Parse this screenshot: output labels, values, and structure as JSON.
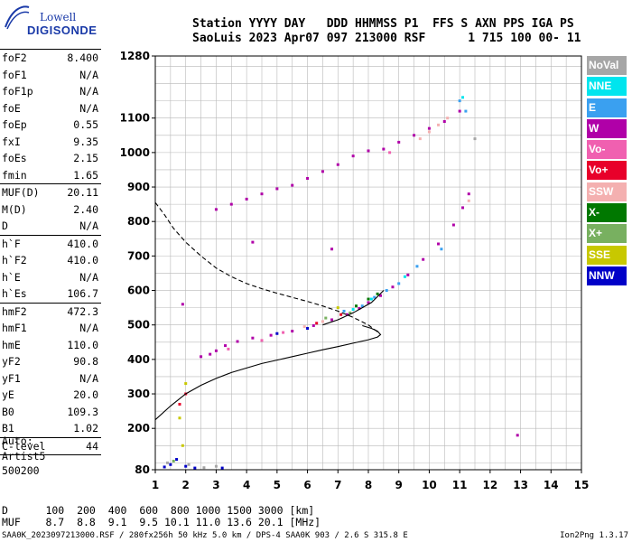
{
  "logo": {
    "line1": "Lowell",
    "line2": "DIGISONDE"
  },
  "header": {
    "line1": "Station YYYY DAY   DDD HHMMSS P1  FFS S AXN PPS IGA PS",
    "line2": "SaoLuis 2023 Apr07 097 213000 RSF      1 715 100 00- 11"
  },
  "params": {
    "group1": [
      {
        "label": "foF2",
        "value": "8.400"
      },
      {
        "label": "foF1",
        "value": "N/A"
      },
      {
        "label": "foF1p",
        "value": "N/A"
      },
      {
        "label": "foE",
        "value": "N/A"
      },
      {
        "label": "foEp",
        "value": "0.55"
      },
      {
        "label": "fxI",
        "value": "9.35"
      },
      {
        "label": "foEs",
        "value": "2.15"
      },
      {
        "label": "fmin",
        "value": "1.65"
      }
    ],
    "group2": [
      {
        "label": "MUF(D)",
        "value": "20.11"
      },
      {
        "label": "M(D)",
        "value": "2.40"
      },
      {
        "label": "D",
        "value": "N/A"
      }
    ],
    "group3": [
      {
        "label": "h`F",
        "value": "410.0"
      },
      {
        "label": "h`F2",
        "value": "410.0"
      },
      {
        "label": "h`E",
        "value": "N/A"
      },
      {
        "label": "h`Es",
        "value": "106.7"
      }
    ],
    "group4": [
      {
        "label": "hmF2",
        "value": "472.3"
      },
      {
        "label": "hmF1",
        "value": "N/A"
      },
      {
        "label": "hmE",
        "value": "110.0"
      },
      {
        "label": "yF2",
        "value": "90.8"
      },
      {
        "label": "yF1",
        "value": "N/A"
      },
      {
        "label": "yE",
        "value": "20.0"
      },
      {
        "label": "B0",
        "value": "109.3"
      },
      {
        "label": "B1",
        "value": "1.02"
      }
    ],
    "group5": [
      {
        "label": "C-level",
        "value": "44"
      }
    ]
  },
  "auto": {
    "line1": "Auto:",
    "line2": "Artist5",
    "line3": "500200"
  },
  "legend": [
    {
      "label": "NoVal",
      "color": "#a6a6a6"
    },
    {
      "label": "NNE",
      "color": "#00e5ee"
    },
    {
      "label": "E",
      "color": "#3aa0f0"
    },
    {
      "label": "W",
      "color": "#b000a8"
    },
    {
      "label": "Vo-",
      "color": "#f060b0"
    },
    {
      "label": "Vo+",
      "color": "#e8002a"
    },
    {
      "label": "SSW",
      "color": "#f4b0b0"
    },
    {
      "label": "X-",
      "color": "#007800"
    },
    {
      "label": "X+",
      "color": "#78b060"
    },
    {
      "label": "SSE",
      "color": "#c8c800"
    },
    {
      "label": "NNW",
      "color": "#0000c8"
    }
  ],
  "muf_table": {
    "d_label": "D",
    "muf_label": "MUF",
    "d_values": [
      "100",
      "200",
      "400",
      "600",
      "800",
      "1000",
      "1500",
      "3000"
    ],
    "d_unit": "[km]",
    "muf_values": [
      "8.7",
      "8.8",
      "9.1",
      "9.5",
      "10.1",
      "11.0",
      "13.6",
      "20.1"
    ],
    "muf_unit": "[MHz]"
  },
  "footer": {
    "left": "SAA0K_2023097213000.RSF / 280fx256h 50 kHz 5.0 km / DPS-4 SAA0K 903 / 2.6 S 315.8 E",
    "right": "Ion2Png 1.3.17"
  },
  "chart_data": {
    "type": "scatter",
    "xlim": [
      1,
      15
    ],
    "ylim": [
      80,
      1280
    ],
    "x_ticks": [
      "1",
      "2",
      "3",
      "4",
      "5",
      "6",
      "7",
      "8",
      "9",
      "10",
      "11",
      "12",
      "13",
      "14",
      "15"
    ],
    "y_ticks": [
      "80",
      "200",
      "300",
      "400",
      "500",
      "600",
      "700",
      "800",
      "900",
      "1000",
      "1100",
      "1280"
    ],
    "grid": true,
    "legend_placement": "right",
    "series": [
      {
        "color": "#b000a8",
        "points": [
          [
            2.5,
            408
          ],
          [
            2.8,
            415
          ],
          [
            3.0,
            425
          ],
          [
            3.3,
            440
          ],
          [
            3.7,
            452
          ],
          [
            4.2,
            462
          ],
          [
            4.8,
            470
          ],
          [
            5.5,
            482
          ],
          [
            6.2,
            498
          ],
          [
            6.8,
            515
          ],
          [
            7.3,
            530
          ],
          [
            7.7,
            548
          ],
          [
            8.0,
            565
          ],
          [
            8.4,
            585
          ],
          [
            8.8,
            610
          ],
          [
            9.3,
            645
          ],
          [
            9.8,
            690
          ],
          [
            10.3,
            735
          ],
          [
            10.8,
            790
          ],
          [
            11.1,
            840
          ],
          [
            11.3,
            880
          ],
          [
            3.0,
            835
          ],
          [
            3.5,
            850
          ],
          [
            4.0,
            865
          ],
          [
            4.5,
            880
          ],
          [
            5.0,
            895
          ],
          [
            5.5,
            905
          ],
          [
            6.0,
            925
          ],
          [
            6.5,
            945
          ],
          [
            7.0,
            965
          ],
          [
            7.5,
            990
          ],
          [
            8.0,
            1005
          ],
          [
            8.5,
            1010
          ],
          [
            9.0,
            1030
          ],
          [
            9.5,
            1050
          ],
          [
            10.0,
            1070
          ],
          [
            10.5,
            1090
          ],
          [
            11.0,
            1120
          ],
          [
            12.9,
            180
          ],
          [
            1.9,
            560
          ],
          [
            4.2,
            740
          ],
          [
            6.8,
            720
          ]
        ]
      },
      {
        "color": "#3aa0f0",
        "points": [
          [
            7.2,
            540
          ],
          [
            7.8,
            555
          ],
          [
            8.2,
            580
          ],
          [
            8.6,
            600
          ],
          [
            9.0,
            620
          ],
          [
            9.6,
            670
          ],
          [
            10.4,
            720
          ],
          [
            11.0,
            1150
          ],
          [
            11.2,
            1120
          ]
        ]
      },
      {
        "color": "#00e5ee",
        "points": [
          [
            7.5,
            545
          ],
          [
            8.1,
            575
          ],
          [
            9.2,
            640
          ],
          [
            11.1,
            1160
          ]
        ]
      },
      {
        "color": "#007800",
        "points": [
          [
            7.6,
            555
          ],
          [
            8.0,
            575
          ],
          [
            8.3,
            590
          ]
        ]
      },
      {
        "color": "#f4b0b0",
        "points": [
          [
            5.9,
            495
          ],
          [
            6.5,
            510
          ],
          [
            9.7,
            1040
          ],
          [
            10.0,
            1060
          ],
          [
            10.3,
            1080
          ],
          [
            10.6,
            1100
          ],
          [
            11.3,
            860
          ]
        ]
      },
      {
        "color": "#e8002a",
        "points": [
          [
            2.0,
            300
          ],
          [
            1.8,
            270
          ],
          [
            6.3,
            505
          ],
          [
            7.1,
            530
          ]
        ]
      },
      {
        "color": "#f060b0",
        "points": [
          [
            3.4,
            430
          ],
          [
            4.5,
            455
          ],
          [
            5.2,
            478
          ],
          [
            8.7,
            1000
          ]
        ]
      },
      {
        "color": "#c8c800",
        "points": [
          [
            1.8,
            230
          ],
          [
            2.0,
            330
          ],
          [
            1.9,
            150
          ],
          [
            7.0,
            550
          ]
        ]
      },
      {
        "color": "#0000c8",
        "points": [
          [
            1.3,
            88
          ],
          [
            1.5,
            95
          ],
          [
            1.7,
            110
          ],
          [
            2.0,
            90
          ],
          [
            2.3,
            85
          ],
          [
            3.2,
            85
          ],
          [
            5.0,
            475
          ],
          [
            6.0,
            490
          ]
        ]
      },
      {
        "color": "#a6a6a6",
        "points": [
          [
            1.4,
            100
          ],
          [
            2.1,
            95
          ],
          [
            2.6,
            86
          ],
          [
            3.0,
            90
          ],
          [
            11.5,
            1040
          ]
        ]
      },
      {
        "color": "#78b060",
        "points": [
          [
            6.6,
            520
          ],
          [
            7.4,
            535
          ],
          [
            1.6,
            105
          ]
        ]
      }
    ],
    "lines": [
      {
        "style": "solid",
        "points": [
          [
            1,
            225
          ],
          [
            1.5,
            265
          ],
          [
            2,
            300
          ],
          [
            2.5,
            325
          ],
          [
            3,
            345
          ],
          [
            3.5,
            362
          ],
          [
            4,
            375
          ],
          [
            4.5,
            388
          ],
          [
            5,
            398
          ],
          [
            5.5,
            408
          ],
          [
            6,
            418
          ],
          [
            6.5,
            428
          ],
          [
            7,
            437
          ],
          [
            7.5,
            447
          ],
          [
            8,
            457
          ],
          [
            8.3,
            465
          ],
          [
            8.4,
            472
          ],
          [
            8.3,
            482
          ],
          [
            8.1,
            490
          ],
          [
            7.8,
            498
          ]
        ]
      },
      {
        "style": "dashed",
        "points": [
          [
            1,
            855
          ],
          [
            1.3,
            820
          ],
          [
            1.6,
            780
          ],
          [
            2,
            740
          ],
          [
            2.5,
            700
          ],
          [
            3,
            665
          ],
          [
            3.5,
            640
          ],
          [
            4,
            620
          ],
          [
            4.5,
            605
          ],
          [
            5,
            592
          ],
          [
            5.5,
            580
          ],
          [
            6,
            568
          ],
          [
            6.5,
            555
          ],
          [
            7,
            540
          ],
          [
            7.5,
            522
          ],
          [
            8,
            500
          ],
          [
            8.3,
            480
          ]
        ]
      },
      {
        "style": "solid",
        "points": [
          [
            6.5,
            500
          ],
          [
            7,
            515
          ],
          [
            7.5,
            535
          ],
          [
            7.8,
            550
          ],
          [
            8.1,
            565
          ],
          [
            8.3,
            582
          ],
          [
            8.5,
            600
          ]
        ]
      }
    ]
  }
}
